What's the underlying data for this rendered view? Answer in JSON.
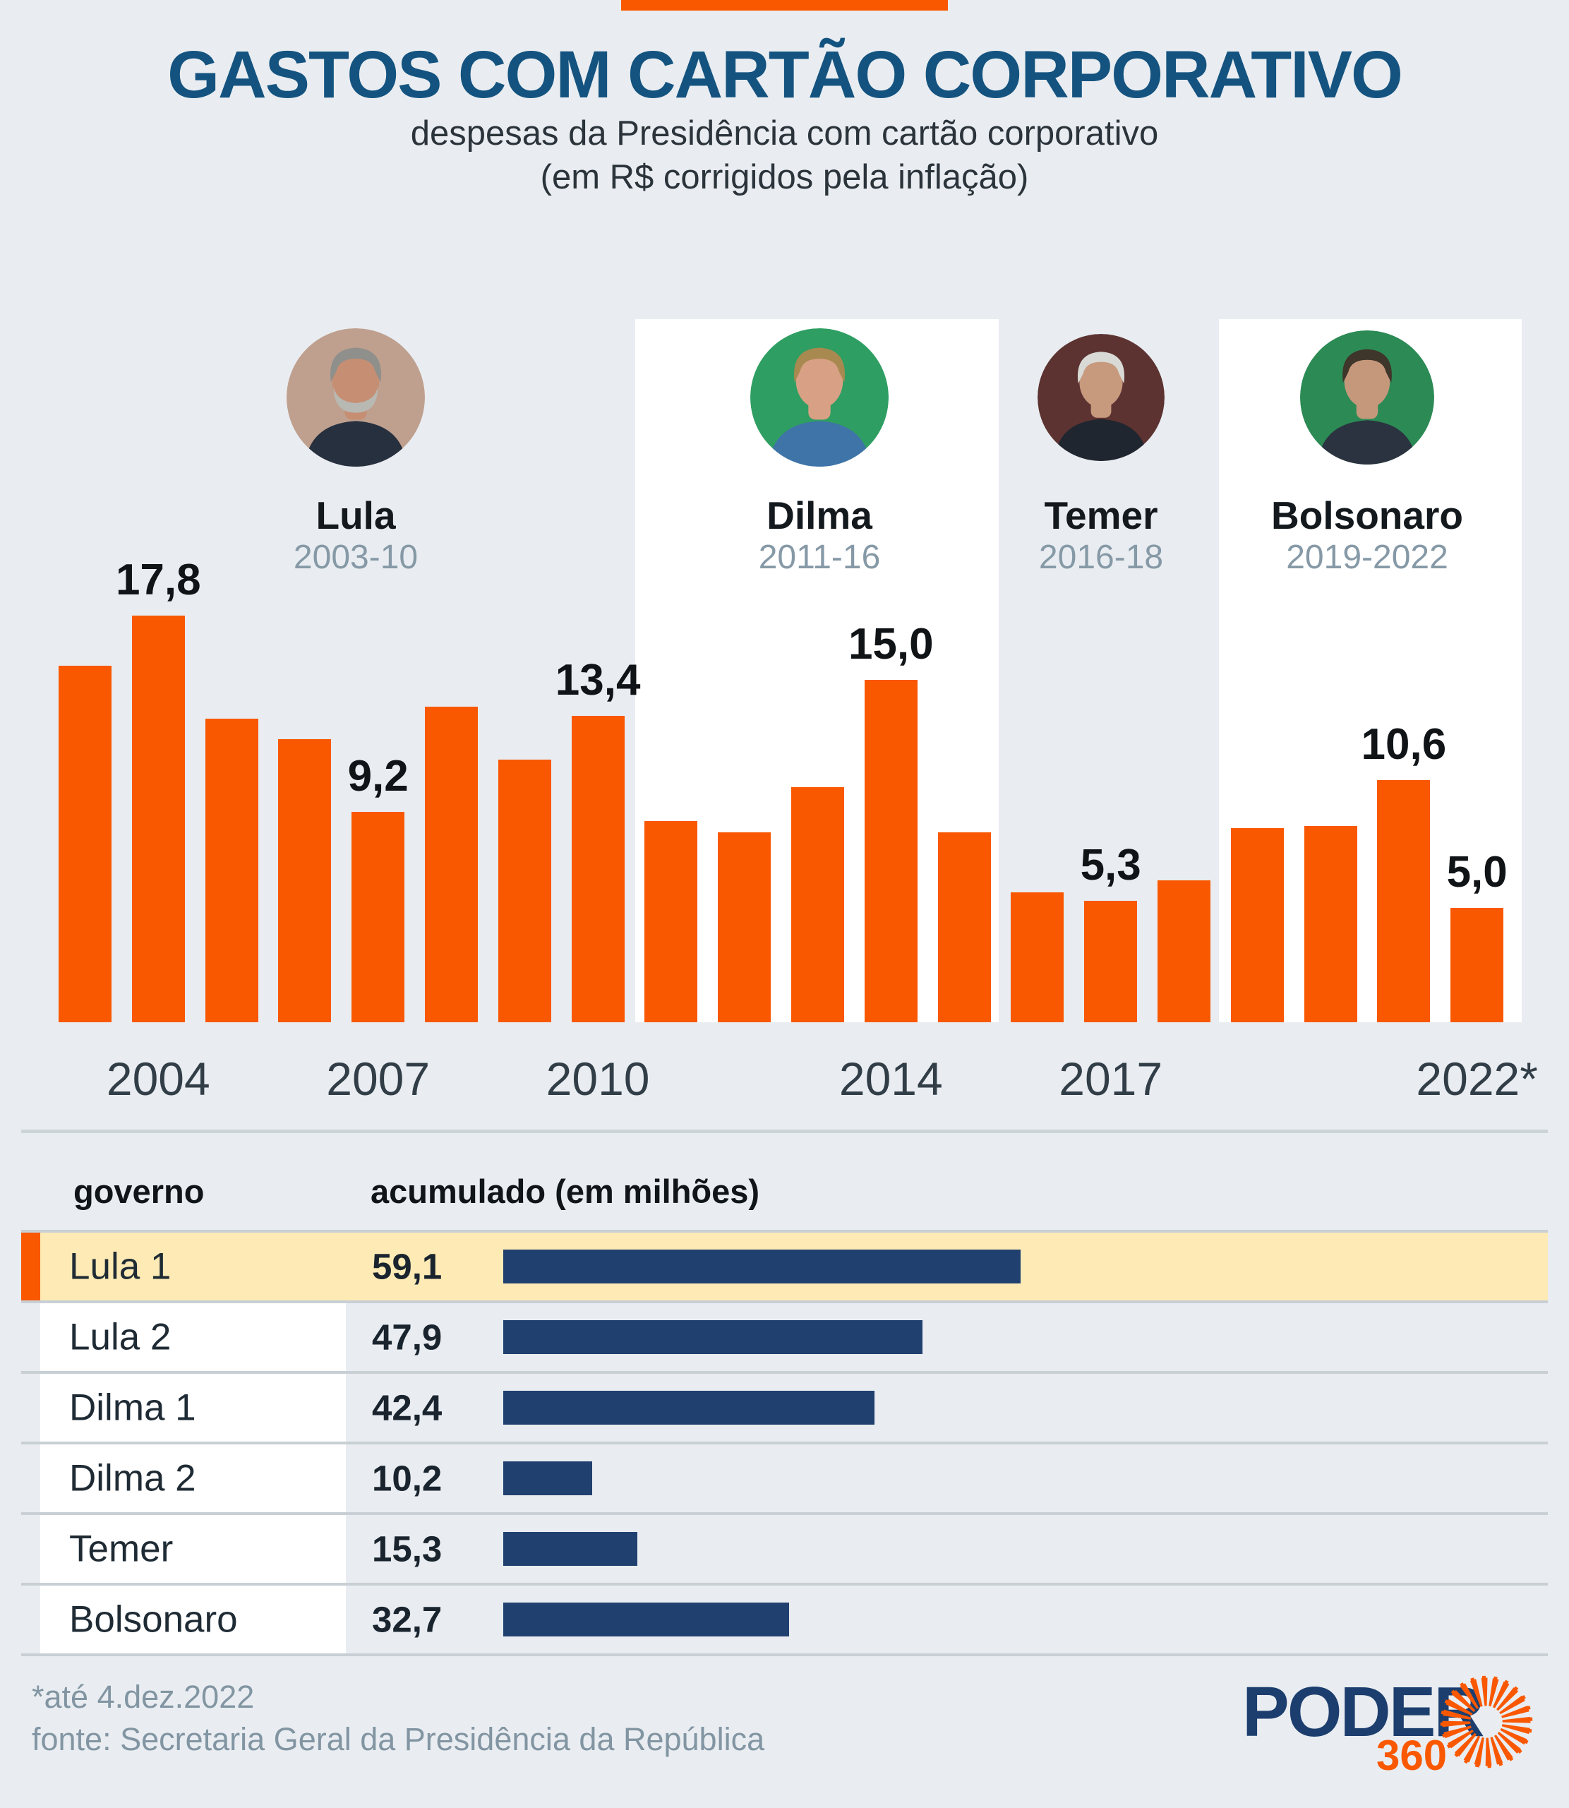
{
  "header": {
    "title": "GASTOS COM CARTÃO CORPORATIVO",
    "subtitle_line1": "despesas da Presidência com cartão corporativo",
    "subtitle_line2": "(em R$ corrigidos pela inflação)"
  },
  "colors": {
    "accent_orange": "#f95801",
    "navy_bar": "#204070",
    "title_blue": "#14537f",
    "highlight_yellow": "#fdeab5",
    "background": "#e9edf1",
    "card_white": "#ffffff",
    "muted_gray_blue": "#8699a6"
  },
  "presidents": [
    {
      "name": "Lula",
      "years": "2003-10",
      "avatar": {
        "bg": "#bfa08f",
        "skin": "#c68e72",
        "hair": "#8f8f8b",
        "suit": "#27303e",
        "beard": "#b9b9b4"
      }
    },
    {
      "name": "Dilma",
      "years": "2011-16",
      "avatar": {
        "bg": "#2f9e62",
        "skin": "#d8a084",
        "hair": "#a8894f",
        "suit": "#3f74a9",
        "beard": null
      }
    },
    {
      "name": "Temer",
      "years": "2016-18",
      "avatar": {
        "bg": "#5c3331",
        "skin": "#c79a7d",
        "hair": "#d9d9d5",
        "suit": "#20262f",
        "beard": null
      }
    },
    {
      "name": "Bolsonaro",
      "years": "2019-2022",
      "avatar": {
        "bg": "#2c8a55",
        "skin": "#c6987b",
        "hair": "#3e352b",
        "suit": "#2a333f",
        "beard": null
      }
    }
  ],
  "chart_data": {
    "type": "bar",
    "title": "GASTOS COM CARTÃO CORPORATIVO",
    "subtitle": "despesas da Presidência com cartão corporativo (em R$ corrigidos pela inflação)",
    "unit": "R$ milhões",
    "x": [
      2003,
      2004,
      2005,
      2006,
      2007,
      2008,
      2009,
      2010,
      2011,
      2012,
      2013,
      2014,
      2015,
      2016,
      2017,
      2018,
      2019,
      2020,
      2021,
      2022
    ],
    "values": [
      15.6,
      17.8,
      13.3,
      12.4,
      9.2,
      13.8,
      11.5,
      13.4,
      8.8,
      8.3,
      10.3,
      15.0,
      8.3,
      5.7,
      5.3,
      6.2,
      8.5,
      8.6,
      10.6,
      5.0
    ],
    "value_labels": [
      {
        "year": 2004,
        "text": "17,8"
      },
      {
        "year": 2007,
        "text": "9,2"
      },
      {
        "year": 2010,
        "text": "13,4"
      },
      {
        "year": 2014,
        "text": "15,0"
      },
      {
        "year": 2017,
        "text": "5,3"
      },
      {
        "year": 2021,
        "text": "10,6"
      },
      {
        "year": 2022,
        "text": "5,0"
      }
    ],
    "xticks": [
      {
        "year": 2004,
        "label": "2004"
      },
      {
        "year": 2007,
        "label": "2007"
      },
      {
        "year": 2010,
        "label": "2010"
      },
      {
        "year": 2014,
        "label": "2014"
      },
      {
        "year": 2017,
        "label": "2017"
      },
      {
        "year": 2022,
        "label": "2022*"
      }
    ],
    "ylim": [
      0,
      18
    ],
    "grid": false,
    "legend": "none",
    "bar_color": "#f95801"
  },
  "table": {
    "headers": [
      "governo",
      "acumulado (em milhões)"
    ],
    "rows": [
      {
        "label": "Lula 1",
        "value_text": "59,1",
        "value": 59.1,
        "highlighted": true
      },
      {
        "label": "Lula 2",
        "value_text": "47,9",
        "value": 47.9,
        "highlighted": false
      },
      {
        "label": "Dilma 1",
        "value_text": "42,4",
        "value": 42.4,
        "highlighted": false
      },
      {
        "label": "Dilma 2",
        "value_text": "10,2",
        "value": 10.2,
        "highlighted": false
      },
      {
        "label": "Temer",
        "value_text": "15,3",
        "value": 15.3,
        "highlighted": false
      },
      {
        "label": "Bolsonaro",
        "value_text": "32,7",
        "value": 32.7,
        "highlighted": false
      }
    ],
    "row_bar_color": "#204070"
  },
  "footer": {
    "note": "*até 4.dez.2022",
    "source": "fonte: Secretaria Geral da Presidência da República"
  },
  "logo": {
    "name": "PODER",
    "suffix": "360"
  }
}
